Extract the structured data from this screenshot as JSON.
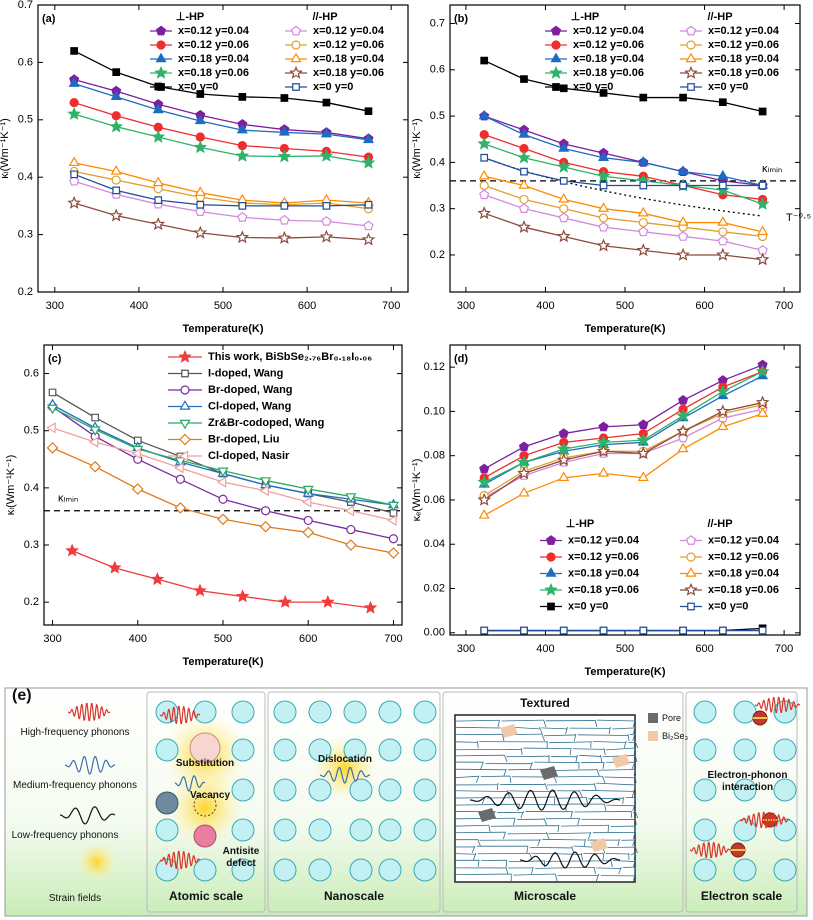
{
  "chart_data": [
    {
      "type": "line",
      "label": "(a)",
      "xlabel": "Temperature(K)",
      "ylabel": "κₗ(Wm⁻¹K⁻¹)",
      "xlim": [
        280,
        720
      ],
      "xticks": [
        300,
        400,
        500,
        600,
        700
      ],
      "ylim": [
        0.2,
        0.7
      ],
      "yticks": [
        0.2,
        0.3,
        0.4,
        0.5,
        0.6,
        0.7
      ],
      "legend_titles": [
        "⊥-HP",
        "//-HP"
      ],
      "x": [
        323,
        373,
        423,
        473,
        523,
        573,
        623,
        673
      ],
      "series": [
        {
          "name": "x=0.12 y=0.04",
          "color": "#7e1fa0",
          "marker": "pentagon",
          "filled": true,
          "values": [
            0.57,
            0.55,
            0.527,
            0.508,
            0.492,
            0.483,
            0.478,
            0.467
          ]
        },
        {
          "name": "x=0.12 y=0.06",
          "color": "#f02d2d",
          "marker": "circle",
          "filled": true,
          "values": [
            0.53,
            0.507,
            0.487,
            0.47,
            0.455,
            0.45,
            0.445,
            0.435
          ]
        },
        {
          "name": "x=0.18 y=0.04",
          "color": "#1c6cc4",
          "marker": "triangle",
          "filled": true,
          "values": [
            0.563,
            0.54,
            0.517,
            0.498,
            0.482,
            0.478,
            0.475,
            0.465
          ]
        },
        {
          "name": "x=0.18 y=0.06",
          "color": "#2eb36a",
          "marker": "star",
          "filled": true,
          "values": [
            0.51,
            0.488,
            0.47,
            0.452,
            0.437,
            0.436,
            0.437,
            0.425
          ]
        },
        {
          "name": "x=0 y=0",
          "color": "#000000",
          "marker": "square",
          "filled": true,
          "values": [
            0.62,
            0.583,
            0.558,
            0.545,
            0.54,
            0.538,
            0.53,
            0.515
          ]
        },
        {
          "name": "x=0.12 y=0.04",
          "color": "#d488e0",
          "marker": "pentagon",
          "filled": false,
          "values": [
            0.393,
            0.37,
            0.353,
            0.34,
            0.33,
            0.325,
            0.323,
            0.315
          ]
        },
        {
          "name": "x=0.12 y=0.06",
          "color": "#e0a030",
          "marker": "circle",
          "filled": false,
          "values": [
            0.41,
            0.395,
            0.38,
            0.365,
            0.355,
            0.352,
            0.355,
            0.345
          ]
        },
        {
          "name": "x=0.18 y=0.04",
          "color": "#ff8a00",
          "marker": "triangle",
          "filled": false,
          "values": [
            0.425,
            0.41,
            0.39,
            0.373,
            0.36,
            0.355,
            0.36,
            0.355
          ]
        },
        {
          "name": "x=0.18 y=0.06",
          "color": "#8c4a3c",
          "marker": "star",
          "filled": false,
          "values": [
            0.355,
            0.333,
            0.318,
            0.303,
            0.295,
            0.294,
            0.296,
            0.291
          ]
        },
        {
          "name": "x=0 y=0",
          "color": "#1f4e9c",
          "marker": "square",
          "filled": false,
          "values": [
            0.405,
            0.377,
            0.36,
            0.352,
            0.35,
            0.35,
            0.35,
            0.352
          ]
        }
      ]
    },
    {
      "type": "line",
      "label": "(b)",
      "xlabel": "Temperature(K)",
      "ylabel": "κₗ(Wm⁻¹K⁻¹)",
      "xlim": [
        280,
        720
      ],
      "xticks": [
        300,
        400,
        500,
        600,
        700
      ],
      "ylim": [
        0.12,
        0.74
      ],
      "yticks": [
        0.2,
        0.3,
        0.4,
        0.5,
        0.6,
        0.7
      ],
      "legend_titles": [
        "⊥-HP",
        "//-HP"
      ],
      "reference_line": {
        "value": 0.36,
        "label": "κₗₘᵢₙ"
      },
      "power_law": {
        "label": "T⁻⁰·⁵",
        "x": [
          323,
          673
        ],
        "start": 0.41,
        "power": -0.5
      },
      "x": [
        323,
        373,
        423,
        473,
        523,
        573,
        623,
        673
      ],
      "series": [
        {
          "name": "x=0.12 y=0.04",
          "color": "#7e1fa0",
          "marker": "pentagon",
          "filled": true,
          "values": [
            0.5,
            0.47,
            0.44,
            0.42,
            0.4,
            0.38,
            0.36,
            0.35
          ]
        },
        {
          "name": "x=0.12 y=0.06",
          "color": "#f02d2d",
          "marker": "circle",
          "filled": true,
          "values": [
            0.46,
            0.43,
            0.4,
            0.38,
            0.37,
            0.35,
            0.33,
            0.32
          ]
        },
        {
          "name": "x=0.18 y=0.04",
          "color": "#1c6cc4",
          "marker": "triangle",
          "filled": true,
          "values": [
            0.5,
            0.46,
            0.43,
            0.41,
            0.4,
            0.38,
            0.37,
            0.35
          ]
        },
        {
          "name": "x=0.18 y=0.06",
          "color": "#2eb36a",
          "marker": "star",
          "filled": true,
          "values": [
            0.44,
            0.41,
            0.39,
            0.37,
            0.36,
            0.35,
            0.34,
            0.31
          ]
        },
        {
          "name": "x=0 y=0",
          "color": "#000000",
          "marker": "square",
          "filled": true,
          "values": [
            0.62,
            0.58,
            0.56,
            0.55,
            0.54,
            0.54,
            0.53,
            0.51
          ]
        },
        {
          "name": "x=0.12 y=0.04",
          "color": "#d488e0",
          "marker": "pentagon",
          "filled": false,
          "values": [
            0.33,
            0.3,
            0.28,
            0.26,
            0.25,
            0.24,
            0.23,
            0.21
          ]
        },
        {
          "name": "x=0.12 y=0.06",
          "color": "#e0a030",
          "marker": "circle",
          "filled": false,
          "values": [
            0.35,
            0.32,
            0.3,
            0.28,
            0.27,
            0.26,
            0.25,
            0.24
          ]
        },
        {
          "name": "x=0.18 y=0.04",
          "color": "#ff8a00",
          "marker": "triangle",
          "filled": false,
          "values": [
            0.37,
            0.35,
            0.32,
            0.3,
            0.29,
            0.27,
            0.27,
            0.25
          ]
        },
        {
          "name": "x=0.18 y=0.06",
          "color": "#8c4a3c",
          "marker": "star",
          "filled": false,
          "values": [
            0.29,
            0.26,
            0.24,
            0.22,
            0.21,
            0.2,
            0.2,
            0.19
          ]
        },
        {
          "name": "x=0 y=0",
          "color": "#1f4e9c",
          "marker": "square",
          "filled": false,
          "values": [
            0.41,
            0.38,
            0.36,
            0.35,
            0.35,
            0.35,
            0.35,
            0.35
          ]
        }
      ]
    },
    {
      "type": "line",
      "label": "(c)",
      "xlabel": "Temperature(K)",
      "ylabel": "κₗ(Wm⁻¹K⁻¹)",
      "xlim": [
        290,
        710
      ],
      "xticks": [
        300,
        400,
        500,
        600,
        700
      ],
      "ylim": [
        0.16,
        0.65
      ],
      "yticks": [
        0.2,
        0.3,
        0.4,
        0.5,
        0.6
      ],
      "reference_line": {
        "value": 0.36,
        "label": "κₗₘᵢₙ"
      },
      "series": [
        {
          "name": "This work, BiSbSe₂.₇₆Br₀.₁₈I₀.₀₆",
          "color": "#f03c3c",
          "marker": "star",
          "filled": true,
          "x": [
            323,
            373,
            423,
            473,
            523,
            573,
            623,
            673
          ],
          "values": [
            0.29,
            0.26,
            0.24,
            0.22,
            0.21,
            0.2,
            0.2,
            0.19
          ]
        },
        {
          "name": "I-doped, Wang",
          "color": "#555555",
          "marker": "square",
          "filled": false,
          "x": [
            300,
            350,
            400,
            450,
            500,
            550,
            600,
            650,
            700
          ],
          "values": [
            0.567,
            0.523,
            0.483,
            0.455,
            0.425,
            0.405,
            0.39,
            0.375,
            0.356
          ]
        },
        {
          "name": "Br-doped, Wang",
          "color": "#7a2aa0",
          "marker": "circle",
          "filled": false,
          "x": [
            300,
            350,
            400,
            450,
            500,
            550,
            600,
            650,
            700
          ],
          "values": [
            0.542,
            0.49,
            0.45,
            0.415,
            0.38,
            0.36,
            0.343,
            0.327,
            0.311
          ]
        },
        {
          "name": "Cl-doped, Wang",
          "color": "#1f6fc4",
          "marker": "triangle",
          "filled": false,
          "x": [
            300,
            350,
            400,
            450,
            500,
            550,
            600,
            650,
            700
          ],
          "values": [
            0.545,
            0.505,
            0.47,
            0.445,
            0.425,
            0.405,
            0.39,
            0.38,
            0.37
          ]
        },
        {
          "name": "Zr&Br-codoped, Wang",
          "color": "#2aaa60",
          "marker": "down-triangle",
          "filled": false,
          "x": [
            300,
            350,
            400,
            450,
            500,
            550,
            600,
            650,
            700
          ],
          "values": [
            0.54,
            0.502,
            0.468,
            0.448,
            0.43,
            0.413,
            0.398,
            0.385,
            0.37
          ]
        },
        {
          "name": "Br-doped, Liu",
          "color": "#e07b1a",
          "marker": "diamond",
          "filled": false,
          "x": [
            300,
            350,
            400,
            450,
            500,
            550,
            600,
            650,
            700
          ],
          "values": [
            0.47,
            0.437,
            0.398,
            0.365,
            0.345,
            0.332,
            0.322,
            0.3,
            0.286
          ]
        },
        {
          "name": "Cl-doped, Nasir",
          "color": "#f0a0a0",
          "marker": "left-triangle",
          "filled": false,
          "x": [
            300,
            350,
            400,
            450,
            500,
            550,
            600,
            650,
            700
          ],
          "values": [
            0.505,
            0.48,
            0.46,
            0.435,
            0.41,
            0.395,
            0.375,
            0.36,
            0.343
          ]
        }
      ]
    },
    {
      "type": "line",
      "label": "(d)",
      "xlabel": "Temperature(K)",
      "ylabel": "κₑ(Wm⁻¹K⁻¹)",
      "xlim": [
        280,
        720
      ],
      "xticks": [
        300,
        400,
        500,
        600,
        700
      ],
      "ylim": [
        -0.001,
        0.13
      ],
      "yticks": [
        {
          "value": 0,
          "label": "0.00"
        },
        0.02,
        0.04,
        0.06,
        0.08,
        {
          "value": 0.1,
          "label": "0.10"
        },
        0.12
      ],
      "legend_titles": [
        "⊥-HP",
        "//-HP"
      ],
      "x": [
        323,
        373,
        423,
        473,
        523,
        573,
        623,
        673
      ],
      "series": [
        {
          "name": "x=0.12 y=0.04",
          "color": "#7e1fa0",
          "marker": "pentagon",
          "filled": true,
          "values": [
            0.074,
            0.084,
            0.09,
            0.093,
            0.094,
            0.105,
            0.114,
            0.121
          ]
        },
        {
          "name": "x=0.12 y=0.06",
          "color": "#f02d2d",
          "marker": "circle",
          "filled": true,
          "values": [
            0.07,
            0.08,
            0.086,
            0.088,
            0.09,
            0.101,
            0.111,
            0.118
          ]
        },
        {
          "name": "x=0.18 y=0.04",
          "color": "#1c6cc4",
          "marker": "triangle",
          "filled": true,
          "values": [
            0.067,
            0.077,
            0.082,
            0.085,
            0.086,
            0.097,
            0.107,
            0.116
          ]
        },
        {
          "name": "x=0.18 y=0.06",
          "color": "#2eb36a",
          "marker": "star",
          "filled": true,
          "values": [
            0.068,
            0.077,
            0.083,
            0.086,
            0.087,
            0.098,
            0.109,
            0.118
          ]
        },
        {
          "name": "x=0 y=0",
          "color": "#000000",
          "marker": "square",
          "filled": true,
          "values": [
            0.001,
            0.001,
            0.001,
            0.001,
            0.001,
            0.001,
            0.001,
            0.002
          ]
        },
        {
          "name": "x=0.12 y=0.04",
          "color": "#d488e0",
          "marker": "pentagon",
          "filled": false,
          "values": [
            0.061,
            0.071,
            0.077,
            0.081,
            0.081,
            0.088,
            0.097,
            0.101
          ]
        },
        {
          "name": "x=0.12 y=0.06",
          "color": "#e0a030",
          "marker": "circle",
          "filled": false,
          "values": [
            0.062,
            0.073,
            0.079,
            0.082,
            0.082,
            0.091,
            0.099,
            0.103
          ]
        },
        {
          "name": "x=0.18 y=0.04",
          "color": "#ff8a00",
          "marker": "triangle",
          "filled": false,
          "values": [
            0.053,
            0.063,
            0.07,
            0.072,
            0.07,
            0.083,
            0.093,
            0.099
          ]
        },
        {
          "name": "x=0.18 y=0.06",
          "color": "#8c4a3c",
          "marker": "star",
          "filled": false,
          "values": [
            0.06,
            0.072,
            0.078,
            0.082,
            0.081,
            0.091,
            0.1,
            0.104
          ]
        },
        {
          "name": "x=0 y=0",
          "color": "#1f4e9c",
          "marker": "square",
          "filled": false,
          "values": [
            0.001,
            0.001,
            0.001,
            0.001,
            0.001,
            0.001,
            0.001,
            0.001
          ]
        }
      ]
    }
  ],
  "schematic": {
    "label": "(e)",
    "legend": [
      "High-frequency phonons",
      "Medium-frequency phonons",
      "Low-frequency phonons",
      "Strain fields"
    ],
    "panels": [
      {
        "title": "Atomic scale",
        "labels": [
          "Substitution",
          "Vacancy",
          "Antisite defect"
        ]
      },
      {
        "title": "Nanoscale",
        "labels": [
          "Dislocation"
        ]
      },
      {
        "title": "Microscale",
        "heading": "Textured",
        "labels": [
          "Pore",
          "Bi₂Se₃"
        ]
      },
      {
        "title": "Electron scale",
        "labels": [
          "Electron-phonon interaction"
        ]
      }
    ]
  }
}
